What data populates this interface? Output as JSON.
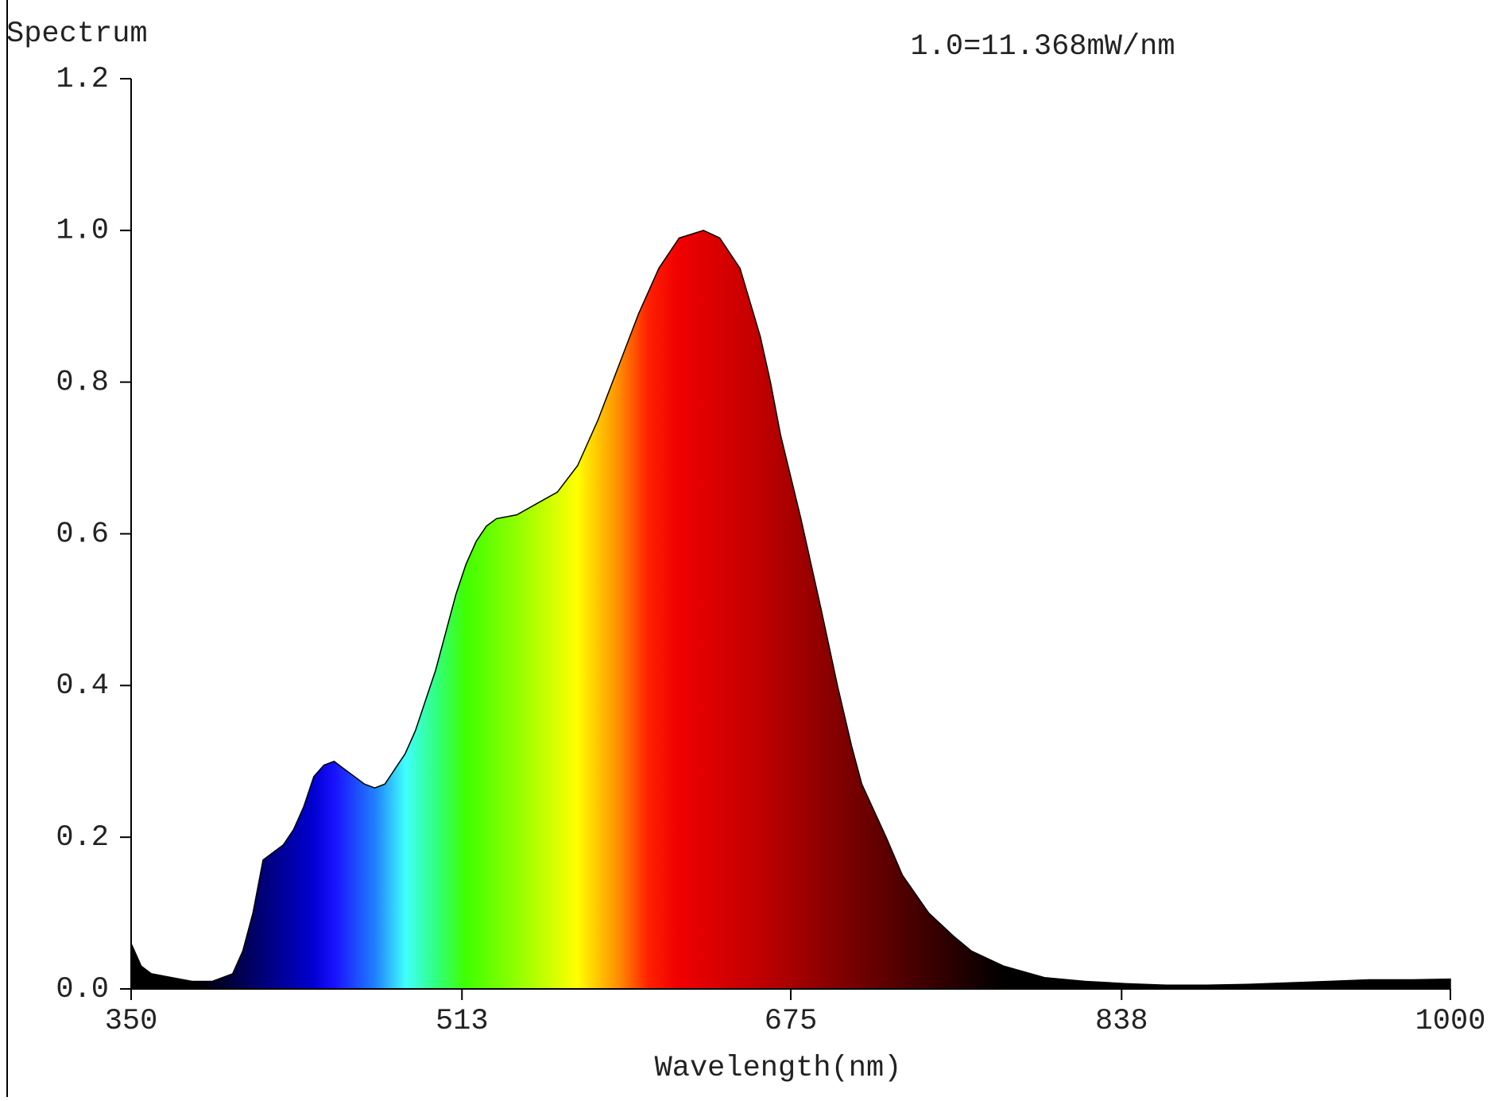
{
  "chart_data": {
    "type": "area",
    "ylabel": "Spectrum",
    "annotation": "1.0=11.368mW/nm",
    "xlabel": "Wavelength(nm)",
    "x": [
      350,
      355,
      360,
      370,
      380,
      390,
      400,
      405,
      410,
      415,
      420,
      425,
      430,
      435,
      440,
      445,
      450,
      455,
      460,
      465,
      470,
      475,
      480,
      485,
      490,
      495,
      500,
      505,
      510,
      515,
      520,
      525,
      530,
      540,
      550,
      560,
      570,
      580,
      590,
      600,
      610,
      620,
      632,
      640,
      650,
      660,
      665,
      670,
      680,
      685,
      690,
      698,
      705,
      710,
      722,
      730,
      743,
      755,
      764,
      780,
      800,
      820,
      840,
      860,
      880,
      900,
      920,
      940,
      960,
      980,
      1000
    ],
    "values": [
      0.06,
      0.03,
      0.02,
      0.015,
      0.01,
      0.01,
      0.02,
      0.05,
      0.1,
      0.17,
      0.18,
      0.19,
      0.21,
      0.24,
      0.28,
      0.295,
      0.3,
      0.29,
      0.28,
      0.27,
      0.265,
      0.27,
      0.29,
      0.31,
      0.34,
      0.38,
      0.42,
      0.47,
      0.52,
      0.56,
      0.59,
      0.61,
      0.62,
      0.625,
      0.64,
      0.655,
      0.69,
      0.75,
      0.82,
      0.89,
      0.95,
      0.99,
      1.0,
      0.99,
      0.95,
      0.86,
      0.8,
      0.73,
      0.62,
      0.56,
      0.5,
      0.4,
      0.32,
      0.27,
      0.2,
      0.15,
      0.1,
      0.07,
      0.05,
      0.03,
      0.015,
      0.01,
      0.007,
      0.005,
      0.005,
      0.006,
      0.008,
      0.01,
      0.012,
      0.012,
      0.013
    ],
    "xlim": [
      350,
      1000
    ],
    "xticks": [
      350,
      513,
      675,
      838,
      1000
    ],
    "ylim": [
      0,
      1.2
    ],
    "yticks": [
      {
        "value": 0,
        "label": "0.0"
      },
      0.2,
      0.4,
      0.6,
      0.8,
      {
        "value": 1,
        "label": "1.0"
      },
      1.2
    ],
    "color": "spectral"
  }
}
